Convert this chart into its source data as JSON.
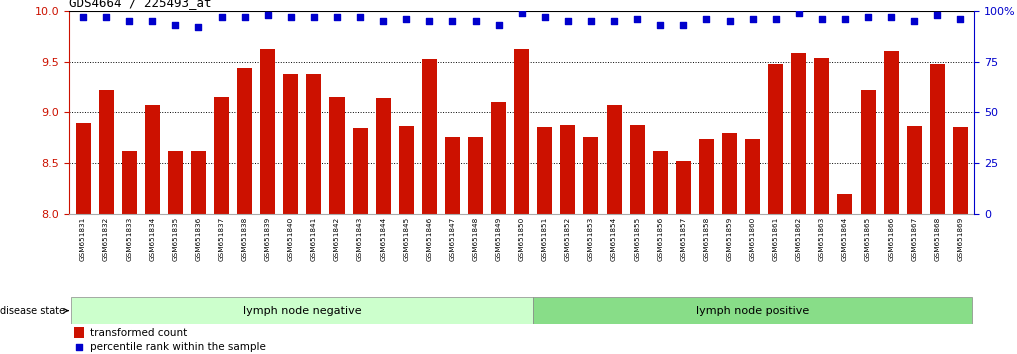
{
  "title": "GDS4664 / 225493_at",
  "samples": [
    "GSM651831",
    "GSM651832",
    "GSM651833",
    "GSM651834",
    "GSM651835",
    "GSM651836",
    "GSM651837",
    "GSM651838",
    "GSM651839",
    "GSM651840",
    "GSM651841",
    "GSM651842",
    "GSM651843",
    "GSM651844",
    "GSM651845",
    "GSM651846",
    "GSM651847",
    "GSM651848",
    "GSM651849",
    "GSM651850",
    "GSM651851",
    "GSM651852",
    "GSM651853",
    "GSM651854",
    "GSM651855",
    "GSM651856",
    "GSM651857",
    "GSM651858",
    "GSM651859",
    "GSM651860",
    "GSM651861",
    "GSM651862",
    "GSM651863",
    "GSM651864",
    "GSM651865",
    "GSM651866",
    "GSM651867",
    "GSM651868",
    "GSM651869"
  ],
  "bar_values": [
    8.9,
    9.22,
    8.62,
    9.07,
    8.62,
    8.62,
    9.15,
    9.44,
    9.62,
    9.38,
    9.38,
    9.15,
    8.85,
    9.14,
    8.87,
    9.52,
    8.76,
    8.76,
    9.1,
    9.62,
    8.86,
    8.88,
    8.76,
    9.07,
    8.88,
    8.62,
    8.52,
    8.74,
    8.8,
    8.74,
    9.48,
    9.58,
    9.53,
    8.2,
    9.22,
    9.6,
    8.87,
    9.48,
    8.86
  ],
  "percentile_values": [
    97,
    97,
    95,
    95,
    93,
    92,
    97,
    97,
    98,
    97,
    97,
    97,
    97,
    95,
    96,
    95,
    95,
    95,
    93,
    99,
    97,
    95,
    95,
    95,
    96,
    93,
    93,
    96,
    95,
    96,
    96,
    99,
    96,
    96,
    97,
    97,
    95,
    98,
    96
  ],
  "bar_color": "#cc1100",
  "dot_color": "#0000cc",
  "ylim_left": [
    8.0,
    10.0
  ],
  "ylim_right": [
    0,
    100
  ],
  "yticks_left": [
    8.0,
    8.5,
    9.0,
    9.5,
    10.0
  ],
  "yticks_right": [
    0,
    25,
    50,
    75,
    100
  ],
  "ytick_labels_right": [
    "0",
    "25",
    "50",
    "75",
    "100%"
  ],
  "group1_count": 20,
  "group1_label": "lymph node negative",
  "group2_label": "lymph node positive",
  "group1_color": "#ccffcc",
  "group2_color": "#88dd88",
  "legend_bar_label": "transformed count",
  "legend_dot_label": "percentile rank within the sample",
  "disease_state_label": "disease state",
  "bg_color": "#ffffff",
  "axis_color_left": "#cc1100",
  "axis_color_right": "#0000cc"
}
